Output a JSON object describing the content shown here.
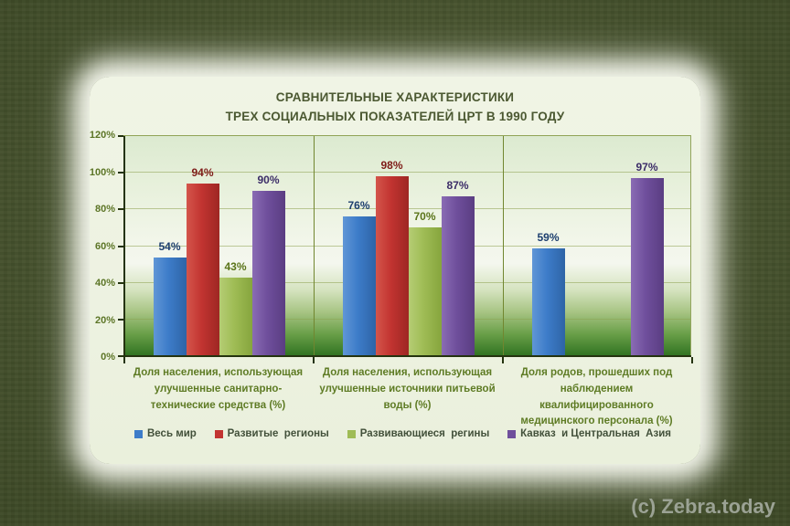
{
  "page": {
    "copyright": "(c) Zebra.today"
  },
  "chart_data": {
    "type": "bar",
    "title_lines": [
      "СРАВНИТЕЛЬНЫЕ ХАРАКТЕРИСТИКИ",
      "ТРЕХ СОЦИАЛЬНЫХ ПОКАЗАТЕЛЕЙ ЦРТ В 1990 ГОДУ"
    ],
    "categories": [
      "Доля населения, использующая улучшенные санитарно-технические средства (%)",
      "Доля населения, использующая улучшенные источники питьевой воды (%)",
      "Доля родов, прошедших под наблюдением квалифицированного медицинского персонала (%)"
    ],
    "series": [
      {
        "name": "Весь мир",
        "color": "#3d7cc9",
        "color_light": "#6096d6",
        "color_dark": "#2e64a6",
        "label_color": "#1c3e6e",
        "values": [
          54,
          76,
          59
        ]
      },
      {
        "name": "Развитые  регионы",
        "color": "#c23431",
        "color_light": "#d4554b",
        "color_dark": "#9e2723",
        "label_color": "#7e1b17",
        "values": [
          94,
          98,
          null
        ]
      },
      {
        "name": "Развивающиеся  регины",
        "color": "#9fbc55",
        "color_light": "#b5cd74",
        "color_dark": "#86a53d",
        "label_color": "#5a7419",
        "values": [
          43,
          70,
          null
        ]
      },
      {
        "name": "Кавказ  и Центральная  Азия",
        "color": "#6f4f9c",
        "color_light": "#8a6cb4",
        "color_dark": "#5a3d82",
        "label_color": "#3c2d68",
        "values": [
          90,
          87,
          97
        ]
      }
    ],
    "y_ticks": [
      "0%",
      "20%",
      "40%",
      "60%",
      "80%",
      "100%",
      "120%"
    ],
    "ylim": [
      0,
      120
    ],
    "y_tick_step": 20,
    "grid": true,
    "legend_position": "bottom",
    "value_suffix": "%"
  }
}
